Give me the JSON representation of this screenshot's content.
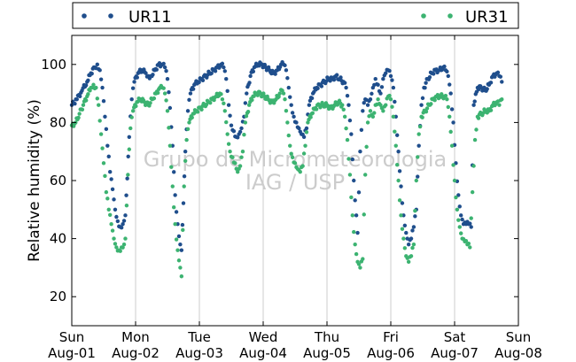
{
  "chart_data": {
    "type": "scatter",
    "ylabel": "Relative humidity (%)",
    "ylim": [
      10,
      110
    ],
    "yticks": [
      20,
      40,
      60,
      80,
      100
    ],
    "xlim": [
      0,
      7
    ],
    "xticks": [
      {
        "day": "Sun",
        "date": "Aug-01"
      },
      {
        "day": "Mon",
        "date": "Aug-02"
      },
      {
        "day": "Tue",
        "date": "Aug-03"
      },
      {
        "day": "Wed",
        "date": "Aug-04"
      },
      {
        "day": "Thu",
        "date": "Aug-05"
      },
      {
        "day": "Fri",
        "date": "Aug-06"
      },
      {
        "day": "Sat",
        "date": "Aug-07"
      },
      {
        "day": "Sun",
        "date": "Aug-08"
      }
    ],
    "grid": "vertical",
    "legend_position": "top",
    "watermark": [
      "Grupo de Micrometeorologia",
      "IAG / USP"
    ],
    "series": [
      {
        "name": "UR11",
        "color": "#1f4e8c",
        "points": [
          [
            0.0,
            86
          ],
          [
            0.08,
            88
          ],
          [
            0.16,
            91
          ],
          [
            0.24,
            94
          ],
          [
            0.3,
            97
          ],
          [
            0.36,
            99
          ],
          [
            0.4,
            100
          ],
          [
            0.44,
            98
          ],
          [
            0.48,
            92
          ],
          [
            0.52,
            82
          ],
          [
            0.56,
            72
          ],
          [
            0.6,
            63
          ],
          [
            0.64,
            57
          ],
          [
            0.68,
            50
          ],
          [
            0.72,
            46
          ],
          [
            0.76,
            44
          ],
          [
            0.8,
            45
          ],
          [
            0.84,
            48
          ],
          [
            0.9,
            75
          ],
          [
            0.94,
            88
          ],
          [
            0.98,
            94
          ],
          [
            1.04,
            97
          ],
          [
            1.1,
            98
          ],
          [
            1.16,
            97
          ],
          [
            1.2,
            96
          ],
          [
            1.24,
            96
          ],
          [
            1.3,
            98
          ],
          [
            1.36,
            100
          ],
          [
            1.42,
            100
          ],
          [
            1.46,
            99
          ],
          [
            1.5,
            95
          ],
          [
            1.54,
            85
          ],
          [
            1.58,
            72
          ],
          [
            1.62,
            55
          ],
          [
            1.66,
            45
          ],
          [
            1.7,
            38
          ],
          [
            1.72,
            36
          ],
          [
            1.78,
            70
          ],
          [
            1.82,
            84
          ],
          [
            1.86,
            90
          ],
          [
            1.92,
            93
          ],
          [
            1.98,
            94
          ],
          [
            2.04,
            95
          ],
          [
            2.1,
            96
          ],
          [
            2.16,
            97
          ],
          [
            2.22,
            98
          ],
          [
            2.28,
            99
          ],
          [
            2.34,
            100
          ],
          [
            2.38,
            99
          ],
          [
            2.42,
            95
          ],
          [
            2.46,
            86
          ],
          [
            2.5,
            79
          ],
          [
            2.54,
            77
          ],
          [
            2.58,
            75
          ],
          [
            2.62,
            76
          ],
          [
            2.66,
            78
          ],
          [
            2.7,
            82
          ],
          [
            2.74,
            90
          ],
          [
            2.8,
            96
          ],
          [
            2.86,
            99
          ],
          [
            2.92,
            100
          ],
          [
            2.98,
            100
          ],
          [
            3.04,
            99
          ],
          [
            3.1,
            98
          ],
          [
            3.16,
            97
          ],
          [
            3.22,
            98
          ],
          [
            3.28,
            100
          ],
          [
            3.32,
            100
          ],
          [
            3.36,
            98
          ],
          [
            3.4,
            92
          ],
          [
            3.44,
            86
          ],
          [
            3.48,
            82
          ],
          [
            3.52,
            80
          ],
          [
            3.56,
            78
          ],
          [
            3.6,
            76
          ],
          [
            3.64,
            75
          ],
          [
            3.68,
            78
          ],
          [
            3.72,
            86
          ],
          [
            3.78,
            90
          ],
          [
            3.84,
            92
          ],
          [
            3.9,
            93
          ],
          [
            3.96,
            94
          ],
          [
            4.02,
            95
          ],
          [
            4.08,
            95
          ],
          [
            4.14,
            96
          ],
          [
            4.2,
            95
          ],
          [
            4.26,
            94
          ],
          [
            4.3,
            92
          ],
          [
            4.34,
            86
          ],
          [
            4.38,
            76
          ],
          [
            4.42,
            60
          ],
          [
            4.46,
            48
          ],
          [
            4.48,
            42
          ],
          [
            4.52,
            70
          ],
          [
            4.56,
            84
          ],
          [
            4.6,
            88
          ],
          [
            4.64,
            86
          ],
          [
            4.68,
            88
          ],
          [
            4.72,
            92
          ],
          [
            4.76,
            95
          ],
          [
            4.8,
            93
          ],
          [
            4.84,
            90
          ],
          [
            4.88,
            95
          ],
          [
            4.92,
            97
          ],
          [
            4.96,
            98
          ],
          [
            5.0,
            96
          ],
          [
            5.04,
            92
          ],
          [
            5.08,
            82
          ],
          [
            5.12,
            70
          ],
          [
            5.16,
            58
          ],
          [
            5.2,
            48
          ],
          [
            5.24,
            42
          ],
          [
            5.28,
            38
          ],
          [
            5.32,
            40
          ],
          [
            5.36,
            44
          ],
          [
            5.4,
            50
          ],
          [
            5.44,
            72
          ],
          [
            5.48,
            86
          ],
          [
            5.52,
            92
          ],
          [
            5.58,
            95
          ],
          [
            5.64,
            97
          ],
          [
            5.7,
            98
          ],
          [
            5.76,
            98
          ],
          [
            5.82,
            99
          ],
          [
            5.86,
            98
          ],
          [
            5.9,
            96
          ],
          [
            5.94,
            90
          ],
          [
            5.98,
            80
          ],
          [
            6.02,
            66
          ],
          [
            6.06,
            55
          ],
          [
            6.1,
            48
          ],
          [
            6.14,
            45
          ],
          [
            6.18,
            45
          ],
          [
            6.22,
            45
          ],
          [
            6.26,
            44
          ],
          [
            6.3,
            86
          ],
          [
            6.36,
            92
          ],
          [
            6.42,
            92
          ],
          [
            6.48,
            91
          ],
          [
            6.54,
            93
          ],
          [
            6.6,
            96
          ],
          [
            6.66,
            97
          ],
          [
            6.7,
            96
          ],
          [
            6.74,
            94
          ]
        ]
      },
      {
        "name": "UR31",
        "color": "#3cb371",
        "points": [
          [
            0.0,
            79
          ],
          [
            0.06,
            80
          ],
          [
            0.12,
            83
          ],
          [
            0.18,
            86
          ],
          [
            0.24,
            89
          ],
          [
            0.3,
            92
          ],
          [
            0.34,
            93
          ],
          [
            0.38,
            92
          ],
          [
            0.42,
            86
          ],
          [
            0.46,
            76
          ],
          [
            0.5,
            66
          ],
          [
            0.54,
            56
          ],
          [
            0.58,
            50
          ],
          [
            0.62,
            45
          ],
          [
            0.66,
            40
          ],
          [
            0.7,
            37
          ],
          [
            0.74,
            36
          ],
          [
            0.78,
            37
          ],
          [
            0.82,
            38
          ],
          [
            0.84,
            40
          ],
          [
            0.88,
            62
          ],
          [
            0.92,
            78
          ],
          [
            0.96,
            84
          ],
          [
            1.02,
            87
          ],
          [
            1.08,
            88
          ],
          [
            1.14,
            87
          ],
          [
            1.2,
            86
          ],
          [
            1.26,
            88
          ],
          [
            1.32,
            90
          ],
          [
            1.38,
            92
          ],
          [
            1.42,
            92
          ],
          [
            1.46,
            90
          ],
          [
            1.5,
            84
          ],
          [
            1.54,
            72
          ],
          [
            1.58,
            58
          ],
          [
            1.62,
            45
          ],
          [
            1.66,
            36
          ],
          [
            1.7,
            30
          ],
          [
            1.72,
            27
          ],
          [
            1.76,
            58
          ],
          [
            1.8,
            74
          ],
          [
            1.84,
            80
          ],
          [
            1.9,
            83
          ],
          [
            1.96,
            84
          ],
          [
            2.02,
            85
          ],
          [
            2.08,
            86
          ],
          [
            2.14,
            87
          ],
          [
            2.2,
            88
          ],
          [
            2.26,
            89
          ],
          [
            2.32,
            90
          ],
          [
            2.36,
            88
          ],
          [
            2.4,
            84
          ],
          [
            2.44,
            76
          ],
          [
            2.48,
            70
          ],
          [
            2.52,
            68
          ],
          [
            2.56,
            66
          ],
          [
            2.6,
            63
          ],
          [
            2.64,
            65
          ],
          [
            2.68,
            70
          ],
          [
            2.72,
            80
          ],
          [
            2.78,
            86
          ],
          [
            2.84,
            89
          ],
          [
            2.9,
            90
          ],
          [
            2.96,
            90
          ],
          [
            3.02,
            89
          ],
          [
            3.08,
            88
          ],
          [
            3.14,
            87
          ],
          [
            3.2,
            88
          ],
          [
            3.26,
            90
          ],
          [
            3.3,
            91
          ],
          [
            3.34,
            88
          ],
          [
            3.38,
            80
          ],
          [
            3.42,
            72
          ],
          [
            3.46,
            68
          ],
          [
            3.5,
            66
          ],
          [
            3.54,
            64
          ],
          [
            3.58,
            63
          ],
          [
            3.62,
            65
          ],
          [
            3.66,
            72
          ],
          [
            3.7,
            80
          ],
          [
            3.76,
            83
          ],
          [
            3.82,
            85
          ],
          [
            3.88,
            86
          ],
          [
            3.94,
            86
          ],
          [
            4.0,
            86
          ],
          [
            4.06,
            85
          ],
          [
            4.12,
            86
          ],
          [
            4.18,
            87
          ],
          [
            4.24,
            86
          ],
          [
            4.28,
            82
          ],
          [
            4.32,
            74
          ],
          [
            4.36,
            62
          ],
          [
            4.4,
            48
          ],
          [
            4.44,
            38
          ],
          [
            4.48,
            32
          ],
          [
            4.52,
            30
          ],
          [
            4.56,
            33
          ],
          [
            4.6,
            62
          ],
          [
            4.64,
            80
          ],
          [
            4.68,
            84
          ],
          [
            4.72,
            82
          ],
          [
            4.76,
            86
          ],
          [
            4.8,
            88
          ],
          [
            4.84,
            86
          ],
          [
            4.88,
            84
          ],
          [
            4.92,
            86
          ],
          [
            4.96,
            89
          ],
          [
            5.0,
            88
          ],
          [
            5.04,
            82
          ],
          [
            5.08,
            72
          ],
          [
            5.12,
            60
          ],
          [
            5.16,
            48
          ],
          [
            5.2,
            40
          ],
          [
            5.24,
            34
          ],
          [
            5.28,
            32
          ],
          [
            5.32,
            34
          ],
          [
            5.36,
            38
          ],
          [
            5.4,
            60
          ],
          [
            5.44,
            76
          ],
          [
            5.48,
            82
          ],
          [
            5.54,
            84
          ],
          [
            5.6,
            86
          ],
          [
            5.66,
            88
          ],
          [
            5.72,
            89
          ],
          [
            5.78,
            89
          ],
          [
            5.84,
            89
          ],
          [
            5.88,
            88
          ],
          [
            5.92,
            82
          ],
          [
            5.96,
            72
          ],
          [
            6.0,
            60
          ],
          [
            6.04,
            50
          ],
          [
            6.08,
            44
          ],
          [
            6.12,
            40
          ],
          [
            6.16,
            39
          ],
          [
            6.2,
            38
          ],
          [
            6.24,
            37
          ],
          [
            6.28,
            56
          ],
          [
            6.32,
            74
          ],
          [
            6.36,
            82
          ],
          [
            6.42,
            83
          ],
          [
            6.48,
            84
          ],
          [
            6.54,
            84
          ],
          [
            6.6,
            86
          ],
          [
            6.66,
            87
          ],
          [
            6.7,
            86
          ],
          [
            6.74,
            88
          ]
        ]
      }
    ]
  }
}
